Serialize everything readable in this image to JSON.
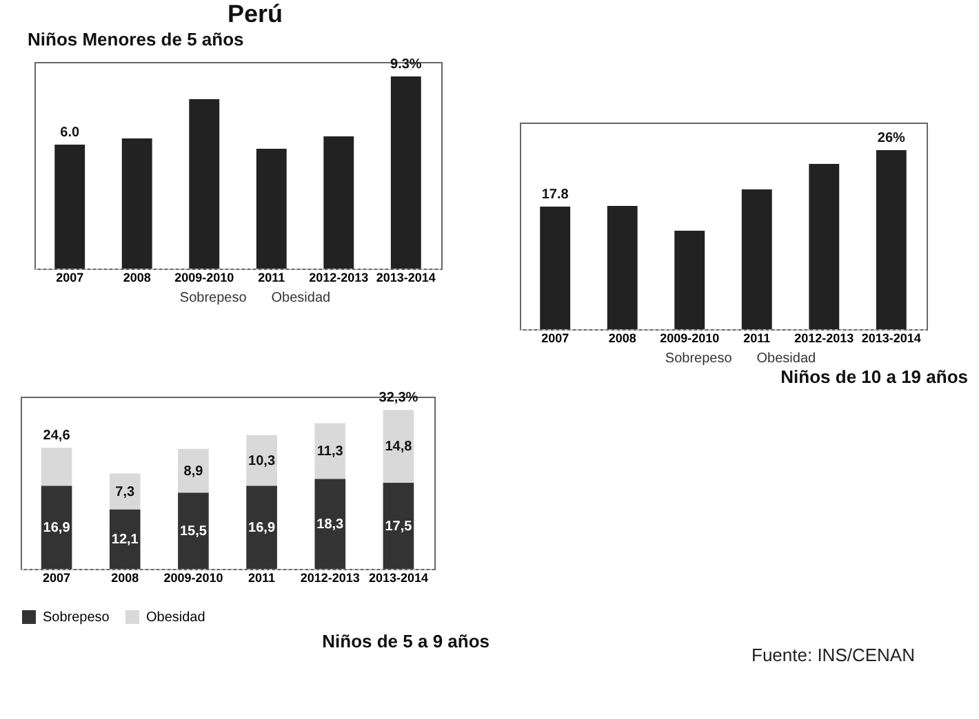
{
  "chart_data": [
    {
      "type": "bar",
      "title": "Perú",
      "subtitle": "Niños Menores de 5 años",
      "categories": [
        "2007",
        "2008",
        "2009-2010",
        "2011",
        "2012-2013",
        "2013-2014"
      ],
      "series": [
        {
          "color": "#222222",
          "values": [
            6.0,
            6.3,
            8.2,
            5.8,
            6.4,
            9.3
          ],
          "value_labels": [
            "6.0",
            null,
            null,
            null,
            null,
            "9.3%"
          ]
        }
      ],
      "ylim": [
        0,
        10
      ],
      "tick_labels": "x",
      "annotations": [
        "Sobrepeso",
        "Obesidad"
      ]
    },
    {
      "type": "bar",
      "title": "Niños de 10 a 19 años",
      "categories": [
        "2007",
        "2008",
        "2009-2010",
        "2011",
        "2012-2013",
        "2013-2014"
      ],
      "series": [
        {
          "color": "#222222",
          "values": [
            17.8,
            17.9,
            14.3,
            20.3,
            24.0,
            26
          ],
          "value_labels": [
            "17.8",
            null,
            null,
            null,
            null,
            "26%"
          ]
        }
      ],
      "ylim": [
        0,
        30
      ],
      "tick_labels": "x",
      "annotations": [
        "Sobrepeso",
        "Obesidad"
      ]
    },
    {
      "type": "bar",
      "title": "Niños de 5 a 9 años",
      "categories": [
        "2007",
        "2008",
        "2009-2010",
        "2011",
        "2012-2013",
        "2013-2014"
      ],
      "stacked": true,
      "series": [
        {
          "name": "Sobrepeso",
          "color": "#333333",
          "values": [
            16.9,
            12.1,
            15.5,
            16.9,
            18.3,
            17.5
          ],
          "value_labels": [
            "16,9",
            "12,1",
            "15,5",
            "16,9",
            "18,3",
            "17,5"
          ]
        },
        {
          "name": "Obesidad",
          "color": "#d9d9d9",
          "values": [
            7.7,
            7.3,
            8.9,
            10.3,
            11.3,
            14.8
          ],
          "value_labels": [
            null,
            "7,3",
            "8,9",
            "10,3",
            "11,3",
            "14,8"
          ]
        }
      ],
      "totals": [
        "24,6",
        null,
        null,
        null,
        null,
        "32,3%"
      ],
      "ylim": [
        0,
        35
      ],
      "tick_labels": "x",
      "legend": "bottom",
      "annotations": [
        "Fuente: INS/CENAN"
      ]
    }
  ]
}
